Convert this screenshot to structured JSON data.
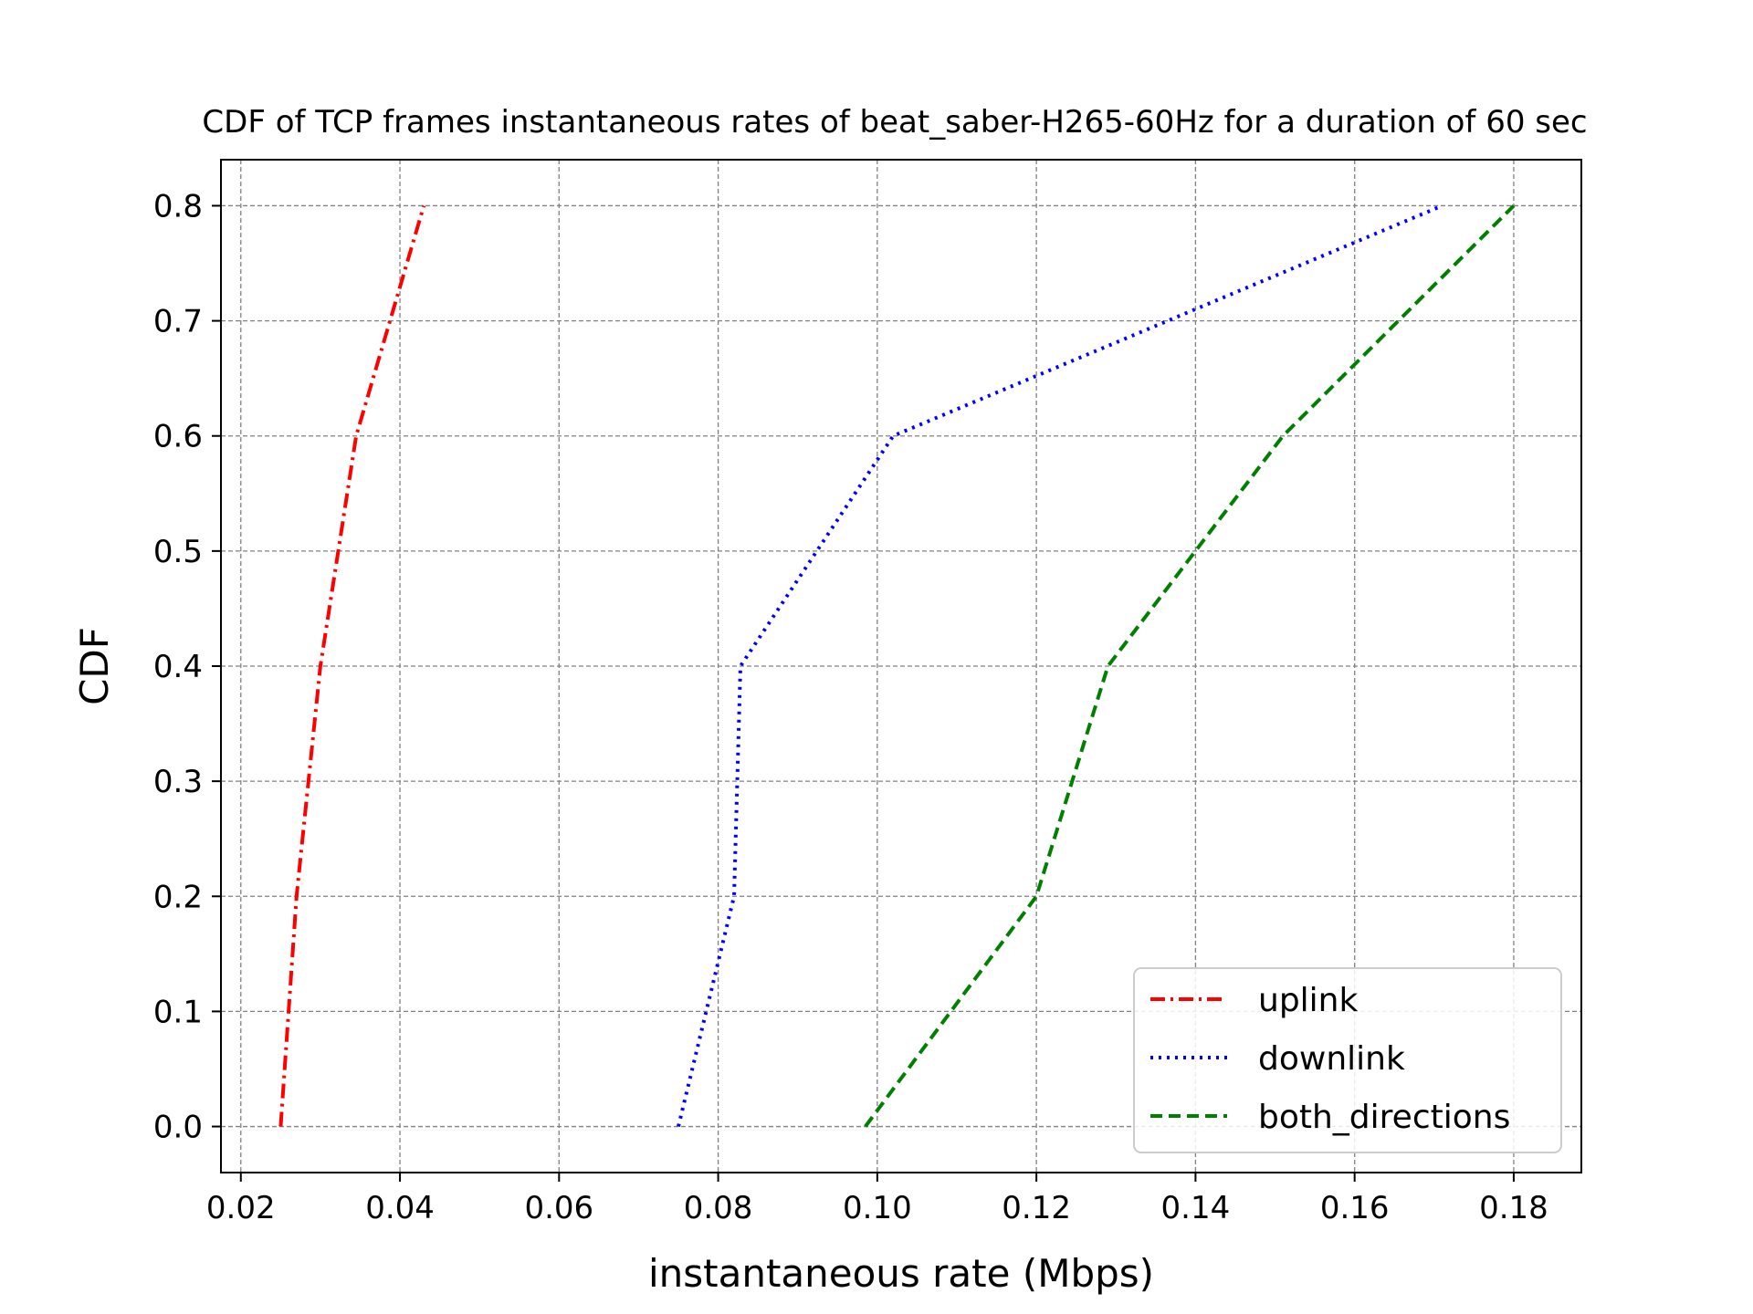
{
  "chart_data": {
    "type": "line",
    "title": "CDF of TCP frames instantaneous rates of beat_saber-H265-60Hz for a duration of 60 sec",
    "xlabel": "instantaneous rate (Mbps)",
    "ylabel": "CDF",
    "xlim": [
      0.0175,
      0.1885
    ],
    "ylim": [
      -0.04,
      0.84
    ],
    "xticks": [
      0.02,
      0.04,
      0.06,
      0.08,
      0.1,
      0.12,
      0.14,
      0.16,
      0.18
    ],
    "xtick_labels": [
      "0.02",
      "0.04",
      "0.06",
      "0.08",
      "0.10",
      "0.12",
      "0.14",
      "0.16",
      "0.18"
    ],
    "yticks": [
      0.0,
      0.1,
      0.2,
      0.3,
      0.4,
      0.5,
      0.6,
      0.7,
      0.8
    ],
    "ytick_labels": [
      "0.0",
      "0.1",
      "0.2",
      "0.3",
      "0.4",
      "0.5",
      "0.6",
      "0.7",
      "0.8"
    ],
    "grid": true,
    "legend_position": "lower-right",
    "series": [
      {
        "name": "uplink",
        "color": "#ff0000",
        "line_style": "dash-dot",
        "x": [
          0.025,
          0.027,
          0.03,
          0.0345,
          0.043
        ],
        "y": [
          0.0,
          0.2,
          0.4,
          0.6,
          0.8
        ]
      },
      {
        "name": "downlink",
        "color": "#0000ff",
        "line_style": "dotted",
        "x": [
          0.075,
          0.082,
          0.0828,
          0.102,
          0.171
        ],
        "y": [
          0.0,
          0.2,
          0.4,
          0.6,
          0.8
        ]
      },
      {
        "name": "both_directions",
        "color": "#008000",
        "line_style": "dashed",
        "x": [
          0.0985,
          0.12,
          0.129,
          0.151,
          0.18
        ],
        "y": [
          0.0,
          0.2,
          0.4,
          0.6,
          0.8
        ]
      }
    ]
  }
}
